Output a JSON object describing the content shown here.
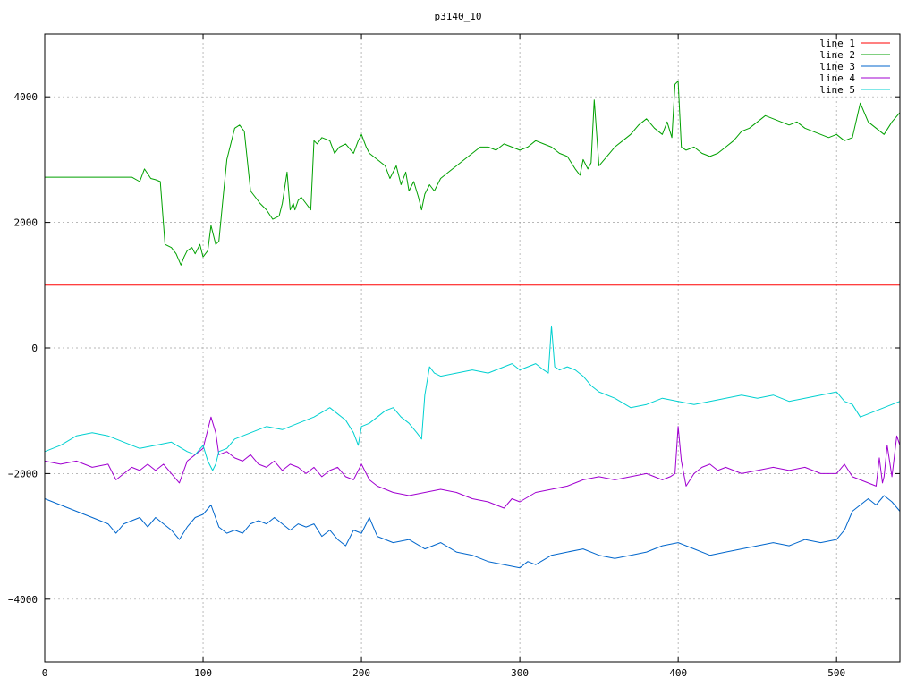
{
  "chart_data": {
    "type": "line",
    "title": "p3140_10",
    "xlabel": "",
    "ylabel": "",
    "xlim": [
      0,
      540
    ],
    "ylim": [
      -5000,
      5000
    ],
    "x_ticks": [
      0,
      100,
      200,
      300,
      400,
      500
    ],
    "y_ticks": [
      -4000,
      -2000,
      0,
      2000,
      4000
    ],
    "grid": true,
    "legend_position": "top-right",
    "series": [
      {
        "name": "line 1",
        "color": "#ff0000",
        "x": [
          0,
          540
        ],
        "y": [
          1000,
          1000
        ]
      },
      {
        "name": "line 2",
        "color": "#00a000",
        "x": [
          0,
          55,
          60,
          63,
          67,
          70,
          73,
          76,
          80,
          83,
          86,
          88,
          90,
          93,
          95,
          98,
          100,
          103,
          105,
          108,
          110,
          113,
          115,
          118,
          120,
          123,
          126,
          130,
          133,
          136,
          140,
          144,
          148,
          150,
          153,
          155,
          157,
          158,
          160,
          162,
          165,
          168,
          170,
          172,
          175,
          180,
          183,
          186,
          190,
          195,
          198,
          200,
          203,
          205,
          210,
          215,
          218,
          222,
          225,
          228,
          230,
          233,
          236,
          238,
          240,
          243,
          246,
          250,
          255,
          260,
          265,
          270,
          275,
          280,
          285,
          290,
          295,
          300,
          305,
          310,
          315,
          320,
          325,
          330,
          335,
          338,
          340,
          343,
          345,
          347,
          350,
          355,
          360,
          365,
          370,
          375,
          380,
          385,
          390,
          393,
          396,
          398,
          400,
          402,
          405,
          410,
          415,
          420,
          425,
          430,
          435,
          440,
          445,
          450,
          455,
          460,
          465,
          470,
          475,
          480,
          485,
          490,
          495,
          500,
          505,
          510,
          515,
          520,
          525,
          530,
          535,
          540
        ],
        "y": [
          2720,
          2720,
          2650,
          2850,
          2700,
          2680,
          2650,
          1650,
          1600,
          1500,
          1320,
          1450,
          1550,
          1600,
          1500,
          1650,
          1450,
          1550,
          1950,
          1650,
          1700,
          2500,
          3000,
          3300,
          3500,
          3550,
          3450,
          2500,
          2400,
          2300,
          2200,
          2050,
          2100,
          2300,
          2800,
          2200,
          2300,
          2200,
          2350,
          2400,
          2300,
          2200,
          3300,
          3250,
          3350,
          3300,
          3100,
          3200,
          3250,
          3100,
          3300,
          3400,
          3200,
          3100,
          3000,
          2900,
          2700,
          2900,
          2600,
          2800,
          2500,
          2650,
          2400,
          2200,
          2450,
          2600,
          2500,
          2700,
          2800,
          2900,
          3000,
          3100,
          3200,
          3200,
          3150,
          3250,
          3200,
          3150,
          3200,
          3300,
          3250,
          3200,
          3100,
          3050,
          2850,
          2750,
          3000,
          2850,
          2950,
          3950,
          2900,
          3050,
          3200,
          3300,
          3400,
          3550,
          3650,
          3500,
          3400,
          3600,
          3350,
          4200,
          4250,
          3200,
          3150,
          3200,
          3100,
          3050,
          3100,
          3200,
          3300,
          3450,
          3500,
          3600,
          3700,
          3650,
          3600,
          3550,
          3600,
          3500,
          3450,
          3400,
          3350,
          3400,
          3300,
          3350,
          3900,
          3600,
          3500,
          3400,
          3600,
          3750
        ]
      },
      {
        "name": "line 3",
        "color": "#0066cc",
        "x": [
          0,
          10,
          20,
          30,
          40,
          45,
          50,
          55,
          60,
          65,
          70,
          75,
          80,
          85,
          90,
          95,
          100,
          105,
          110,
          115,
          120,
          125,
          130,
          135,
          140,
          145,
          150,
          155,
          160,
          165,
          170,
          175,
          180,
          185,
          190,
          195,
          200,
          205,
          210,
          220,
          230,
          240,
          250,
          260,
          270,
          280,
          290,
          300,
          305,
          310,
          320,
          330,
          340,
          350,
          360,
          370,
          380,
          390,
          400,
          405,
          410,
          420,
          430,
          440,
          450,
          460,
          470,
          480,
          490,
          500,
          505,
          510,
          515,
          520,
          525,
          530,
          535,
          540
        ],
        "y": [
          -2400,
          -2500,
          -2600,
          -2700,
          -2800,
          -2950,
          -2800,
          -2750,
          -2700,
          -2850,
          -2700,
          -2800,
          -2900,
          -3050,
          -2850,
          -2700,
          -2650,
          -2500,
          -2850,
          -2950,
          -2900,
          -2950,
          -2800,
          -2750,
          -2800,
          -2700,
          -2800,
          -2900,
          -2800,
          -2850,
          -2800,
          -3000,
          -2900,
          -3050,
          -3150,
          -2900,
          -2950,
          -2700,
          -3000,
          -3100,
          -3050,
          -3200,
          -3100,
          -3250,
          -3300,
          -3400,
          -3450,
          -3500,
          -3400,
          -3450,
          -3300,
          -3250,
          -3200,
          -3300,
          -3350,
          -3300,
          -3250,
          -3150,
          -3100,
          -3150,
          -3200,
          -3300,
          -3250,
          -3200,
          -3150,
          -3100,
          -3150,
          -3050,
          -3100,
          -3050,
          -2900,
          -2600,
          -2500,
          -2400,
          -2500,
          -2350,
          -2450,
          -2600
        ]
      },
      {
        "name": "line 4",
        "color": "#a000d0",
        "x": [
          0,
          10,
          20,
          30,
          40,
          45,
          50,
          55,
          60,
          65,
          70,
          75,
          80,
          85,
          90,
          95,
          100,
          105,
          108,
          110,
          115,
          120,
          125,
          130,
          135,
          140,
          145,
          150,
          155,
          160,
          165,
          170,
          175,
          180,
          185,
          190,
          195,
          200,
          205,
          210,
          220,
          230,
          240,
          250,
          260,
          270,
          280,
          290,
          295,
          300,
          310,
          320,
          330,
          340,
          350,
          360,
          370,
          380,
          390,
          395,
          398,
          400,
          402,
          405,
          410,
          415,
          420,
          425,
          430,
          440,
          450,
          460,
          470,
          480,
          490,
          500,
          505,
          510,
          515,
          520,
          525,
          527,
          529,
          530,
          532,
          535,
          538,
          540
        ],
        "y": [
          -1800,
          -1850,
          -1800,
          -1900,
          -1850,
          -2100,
          -2000,
          -1900,
          -1950,
          -1850,
          -1950,
          -1850,
          -2000,
          -2150,
          -1800,
          -1700,
          -1600,
          -1100,
          -1350,
          -1700,
          -1650,
          -1750,
          -1800,
          -1700,
          -1850,
          -1900,
          -1800,
          -1950,
          -1850,
          -1900,
          -2000,
          -1900,
          -2050,
          -1950,
          -1900,
          -2050,
          -2100,
          -1850,
          -2100,
          -2200,
          -2300,
          -2350,
          -2300,
          -2250,
          -2300,
          -2400,
          -2450,
          -2550,
          -2400,
          -2450,
          -2300,
          -2250,
          -2200,
          -2100,
          -2050,
          -2100,
          -2050,
          -2000,
          -2100,
          -2050,
          -2000,
          -1250,
          -1800,
          -2200,
          -2000,
          -1900,
          -1850,
          -1950,
          -1900,
          -2000,
          -1950,
          -1900,
          -1950,
          -1900,
          -2000,
          -2000,
          -1850,
          -2050,
          -2100,
          -2150,
          -2200,
          -1750,
          -2150,
          -2050,
          -1550,
          -2050,
          -1400,
          -1550
        ]
      },
      {
        "name": "line 5",
        "color": "#00d0d0",
        "x": [
          0,
          10,
          20,
          30,
          40,
          50,
          60,
          70,
          80,
          90,
          95,
          100,
          103,
          106,
          108,
          110,
          115,
          120,
          130,
          140,
          150,
          160,
          170,
          180,
          185,
          190,
          195,
          198,
          200,
          205,
          210,
          215,
          220,
          225,
          230,
          235,
          238,
          240,
          243,
          246,
          250,
          260,
          270,
          280,
          290,
          295,
          300,
          305,
          310,
          315,
          318,
          320,
          322,
          325,
          330,
          335,
          340,
          345,
          350,
          360,
          370,
          380,
          390,
          400,
          410,
          420,
          430,
          440,
          450,
          460,
          470,
          480,
          490,
          500,
          505,
          510,
          515,
          520,
          525,
          530,
          535,
          540
        ],
        "y": [
          -1650,
          -1550,
          -1400,
          -1350,
          -1400,
          -1500,
          -1600,
          -1550,
          -1500,
          -1650,
          -1700,
          -1550,
          -1800,
          -1950,
          -1850,
          -1650,
          -1600,
          -1450,
          -1350,
          -1250,
          -1300,
          -1200,
          -1100,
          -950,
          -1050,
          -1150,
          -1350,
          -1550,
          -1250,
          -1200,
          -1100,
          -1000,
          -950,
          -1100,
          -1200,
          -1350,
          -1450,
          -750,
          -300,
          -400,
          -450,
          -400,
          -350,
          -400,
          -300,
          -250,
          -350,
          -300,
          -250,
          -350,
          -400,
          350,
          -300,
          -350,
          -300,
          -350,
          -450,
          -600,
          -700,
          -800,
          -950,
          -900,
          -800,
          -850,
          -900,
          -850,
          -800,
          -750,
          -800,
          -750,
          -850,
          -800,
          -750,
          -700,
          -850,
          -900,
          -1100,
          -1050,
          -1000,
          -950,
          -900,
          -850
        ]
      }
    ]
  }
}
